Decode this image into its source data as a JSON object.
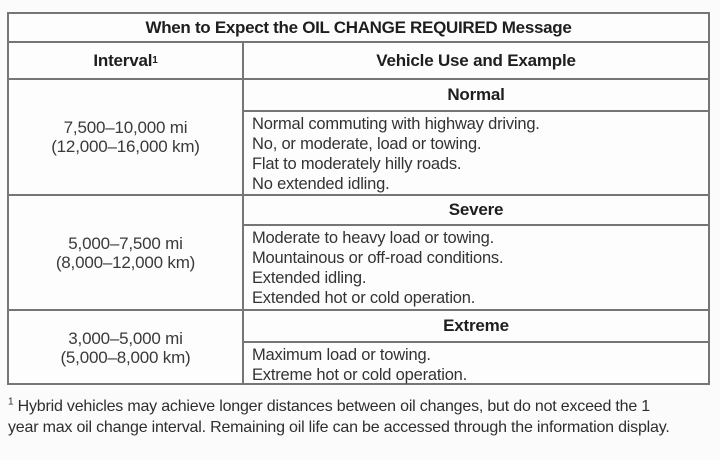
{
  "table": {
    "title": "When to Expect the OIL CHANGE REQUIRED Message",
    "header": {
      "interval": "Interval",
      "interval_footnote_mark": "1",
      "vehicle_use": "Vehicle Use and Example"
    },
    "rows": [
      {
        "interval_mi": "7,500–10,000 mi",
        "interval_km": "(12,000–16,000 km)",
        "category": "Normal",
        "examples": [
          "Normal commuting with highway driving.",
          "No, or moderate, load or towing.",
          "Flat to moderately hilly roads.",
          "No extended idling."
        ]
      },
      {
        "interval_mi": "5,000–7,500 mi",
        "interval_km": "(8,000–12,000 km)",
        "category": "Severe",
        "examples": [
          "Moderate to heavy load or towing.",
          "Mountainous or off-road conditions.",
          "Extended idling.",
          "Extended hot or cold operation."
        ]
      },
      {
        "interval_mi": "3,000–5,000 mi",
        "interval_km": "(5,000–8,000 km)",
        "category": "Extreme",
        "examples": [
          "Maximum load or towing.",
          "Extreme hot or cold operation."
        ]
      }
    ]
  },
  "footnote": {
    "mark": "1",
    "text": "Hybrid vehicles may achieve longer distances between oil changes, but do not exceed the 1 year max oil change interval. Remaining oil life can be accessed through the information display."
  },
  "colors": {
    "border": "#767676",
    "text_heading": "#1e1e1e",
    "text_body": "#333333"
  }
}
